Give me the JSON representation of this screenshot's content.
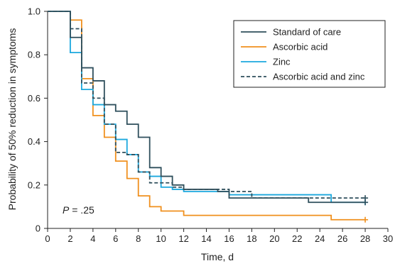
{
  "chart_data": {
    "type": "line",
    "step": true,
    "xlabel": "Time, d",
    "ylabel": "Probability of 50% reduction in symptoms",
    "xlim": [
      0,
      30
    ],
    "ylim": [
      0,
      1.0
    ],
    "x_ticks": [
      0,
      2,
      4,
      6,
      8,
      10,
      12,
      14,
      16,
      18,
      20,
      22,
      24,
      26,
      28,
      30
    ],
    "y_ticks": [
      0,
      0.2,
      0.4,
      0.6,
      0.8,
      1.0
    ],
    "y_tick_labels": [
      "0",
      "0.2",
      "0.4",
      "0.6",
      "0.8",
      "1.0"
    ],
    "grid": false,
    "legend_placement": "top-right",
    "annotation": {
      "italic": "P",
      "text": " = .25"
    },
    "series": [
      {
        "name": "Standard of care",
        "color": "#2f4f5c",
        "dash": "solid",
        "x": [
          0,
          2,
          3,
          4,
          5,
          6,
          7,
          8,
          9,
          10,
          11,
          12,
          14,
          15,
          16,
          18,
          23,
          28
        ],
        "y": [
          1.0,
          0.88,
          0.74,
          0.68,
          0.57,
          0.54,
          0.48,
          0.42,
          0.28,
          0.24,
          0.2,
          0.18,
          0.18,
          0.17,
          0.14,
          0.14,
          0.12,
          0.12
        ],
        "censor": [
          28
        ]
      },
      {
        "name": "Ascorbic acid",
        "color": "#f0901e",
        "dash": "solid",
        "x": [
          0,
          2,
          3,
          4,
          5,
          6,
          7,
          8,
          9,
          10,
          12,
          25,
          28
        ],
        "y": [
          1.0,
          0.96,
          0.69,
          0.52,
          0.42,
          0.31,
          0.23,
          0.15,
          0.1,
          0.08,
          0.06,
          0.04,
          0.04
        ],
        "censor": [
          28
        ]
      },
      {
        "name": "Zinc",
        "color": "#1ba8de",
        "dash": "solid",
        "x": [
          0,
          2,
          3,
          4,
          5,
          6,
          7,
          8,
          9,
          10,
          11,
          12,
          16,
          25,
          28
        ],
        "y": [
          1.0,
          0.81,
          0.64,
          0.57,
          0.48,
          0.41,
          0.34,
          0.26,
          0.24,
          0.19,
          0.18,
          0.17,
          0.155,
          0.12,
          0.12
        ],
        "censor": [
          28
        ]
      },
      {
        "name": "Ascorbic acid and zinc",
        "color": "#2f4f5c",
        "dash": "dashed",
        "x": [
          0,
          2,
          3,
          4,
          5,
          6,
          7,
          8,
          9,
          11,
          12,
          16,
          18,
          28
        ],
        "y": [
          1.0,
          0.92,
          0.67,
          0.6,
          0.48,
          0.35,
          0.34,
          0.26,
          0.21,
          0.19,
          0.18,
          0.17,
          0.14,
          0.14
        ],
        "censor": [
          28
        ]
      }
    ]
  }
}
